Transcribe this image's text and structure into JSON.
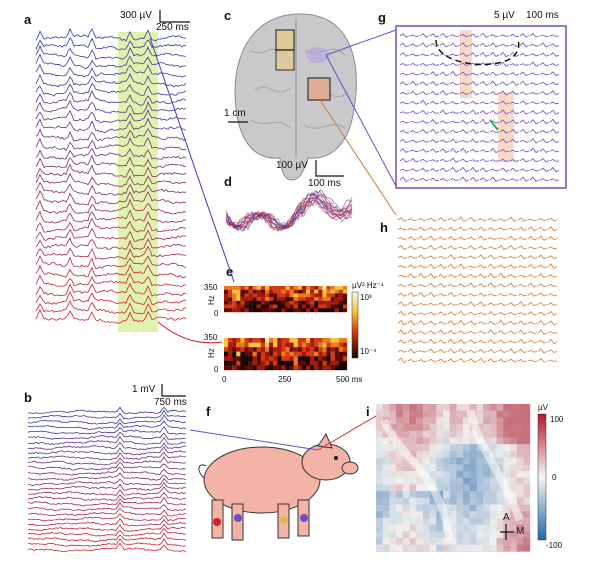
{
  "panels": {
    "a": {
      "label": "a",
      "scale_voltage": "300 µV",
      "scale_time": "250 ms"
    },
    "b": {
      "label": "b",
      "scale_voltage": "1 mV",
      "scale_time": "750 ms"
    },
    "c": {
      "label": "c",
      "scale": "1 cm"
    },
    "d": {
      "label": "d",
      "scale_voltage": "100 µV",
      "scale_time": "100 ms"
    },
    "e": {
      "label": "e",
      "ylabel": "Hz",
      "y_top": "350",
      "y_zero": "0",
      "x_ticks": [
        "0",
        "250",
        "500 ms"
      ],
      "colorbar_label": "µV² Hz⁻¹",
      "colorbar_top": "10³",
      "colorbar_bottom": "10⁻⁴"
    },
    "f": {
      "label": "f"
    },
    "g": {
      "label": "g",
      "scale_voltage": "5 µV",
      "scale_time": "100 ms"
    },
    "h": {
      "label": "h"
    },
    "i": {
      "label": "i",
      "colorbar_unit": "µV",
      "colorbar_top": "100",
      "colorbar_mid": "0",
      "colorbar_bottom": "-100",
      "axis_a": "A",
      "axis_m": "M"
    }
  },
  "colors": {
    "blue": "#2e3aa8",
    "red": "#d4202c",
    "purple": "#6a4fc8",
    "orange": "#d07a3a",
    "highlight_green": "#d9ef9a",
    "pig": "#f3b3a6"
  }
}
